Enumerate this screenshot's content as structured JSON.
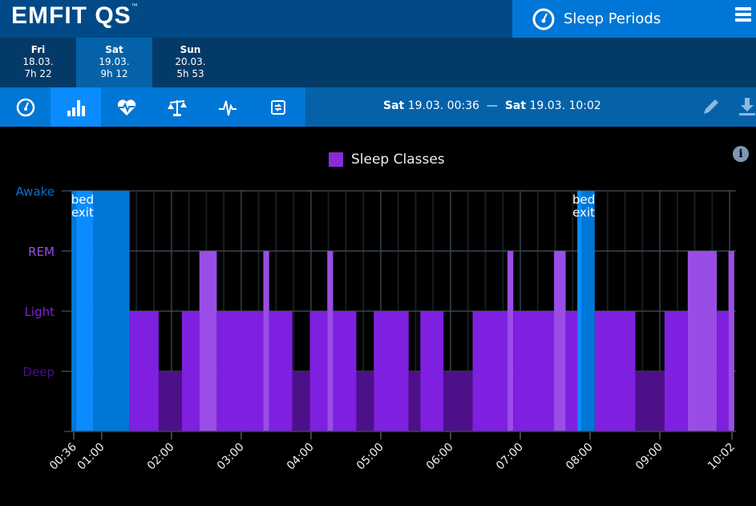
{
  "header": {
    "logo": "EMFIT QS",
    "logo_tm": "™",
    "periods_label": "Sleep Periods"
  },
  "days": [
    {
      "name": "Fri",
      "date": "18.03.",
      "duration": "7h 22",
      "selected": false
    },
    {
      "name": "Sat",
      "date": "19.03.",
      "duration": "9h 12",
      "selected": true
    },
    {
      "name": "Sun",
      "date": "20.03.",
      "duration": "5h 53",
      "selected": false
    }
  ],
  "toolbar": {
    "tabs": [
      {
        "icon": "dashboard-gauge-icon"
      },
      {
        "icon": "bar-chart-icon"
      },
      {
        "icon": "heart-rate-icon"
      },
      {
        "icon": "scale-icon"
      },
      {
        "icon": "hrv-pulse-icon"
      },
      {
        "icon": "sync-device-icon"
      }
    ],
    "selected_tab": 1,
    "range": {
      "start_day": "Sat",
      "start": "19.03. 00:36",
      "sep": "—",
      "end_day": "Sat",
      "end": "19.03. 10:02"
    }
  },
  "chart_data": {
    "type": "bar",
    "title": "",
    "legend": [
      "Sleep Classes"
    ],
    "legend_placement": "top-center",
    "y_categories": [
      "Deep",
      "Light",
      "REM",
      "Awake"
    ],
    "x_range": [
      "00:36",
      "10:02"
    ],
    "x_ticks": [
      "00:36",
      "01:00",
      "02:00",
      "03:00",
      "04:00",
      "05:00",
      "06:00",
      "07:00",
      "08:00",
      "09:00",
      "10:02"
    ],
    "annotations": [
      {
        "text": "bed exit",
        "at": "00:38"
      },
      {
        "text": "bed exit",
        "at": "07:49"
      }
    ],
    "colors": {
      "Awake": "#0077d6",
      "BedExit": "#0a8cff",
      "Light": "#7f20e0",
      "Deep": "#4d1088",
      "REM": "#9a4de6"
    },
    "label_colors": {
      "Awake": "#0a6fd0",
      "REM": "#9a4de6",
      "Light": "#7f20e0",
      "Deep": "#4d1088"
    },
    "segments": [
      [
        "00:34",
        "00:38",
        "Awake"
      ],
      [
        "00:38",
        "00:53",
        "BedExit"
      ],
      [
        "00:53",
        "01:24",
        "Awake"
      ],
      [
        "01:24",
        "01:49",
        "Light"
      ],
      [
        "01:49",
        "02:09",
        "Deep"
      ],
      [
        "02:09",
        "02:24",
        "Light"
      ],
      [
        "02:24",
        "02:39",
        "REM"
      ],
      [
        "02:39",
        "03:19",
        "Light"
      ],
      [
        "03:19",
        "03:24",
        "REM"
      ],
      [
        "03:24",
        "03:44",
        "Light"
      ],
      [
        "03:44",
        "03:59",
        "Deep"
      ],
      [
        "03:59",
        "04:14",
        "Light"
      ],
      [
        "04:14",
        "04:19",
        "REM"
      ],
      [
        "04:19",
        "04:39",
        "Light"
      ],
      [
        "04:39",
        "04:54",
        "Deep"
      ],
      [
        "04:54",
        "05:24",
        "Light"
      ],
      [
        "05:24",
        "05:34",
        "Deep"
      ],
      [
        "05:34",
        "05:54",
        "Light"
      ],
      [
        "05:54",
        "06:19",
        "Deep"
      ],
      [
        "06:19",
        "06:49",
        "Light"
      ],
      [
        "06:49",
        "06:54",
        "REM"
      ],
      [
        "06:54",
        "07:29",
        "Light"
      ],
      [
        "07:29",
        "07:39",
        "REM"
      ],
      [
        "07:39",
        "07:49",
        "Light"
      ],
      [
        "07:49",
        "07:53",
        "BedExit"
      ],
      [
        "07:53",
        "08:04",
        "Awake"
      ],
      [
        "08:04",
        "08:39",
        "Light"
      ],
      [
        "08:39",
        "09:04",
        "Deep"
      ],
      [
        "09:04",
        "09:24",
        "Light"
      ],
      [
        "09:24",
        "09:49",
        "REM"
      ],
      [
        "09:49",
        "09:59",
        "Light"
      ],
      [
        "09:59",
        "10:04",
        "REM"
      ]
    ]
  },
  "info_label": "i"
}
